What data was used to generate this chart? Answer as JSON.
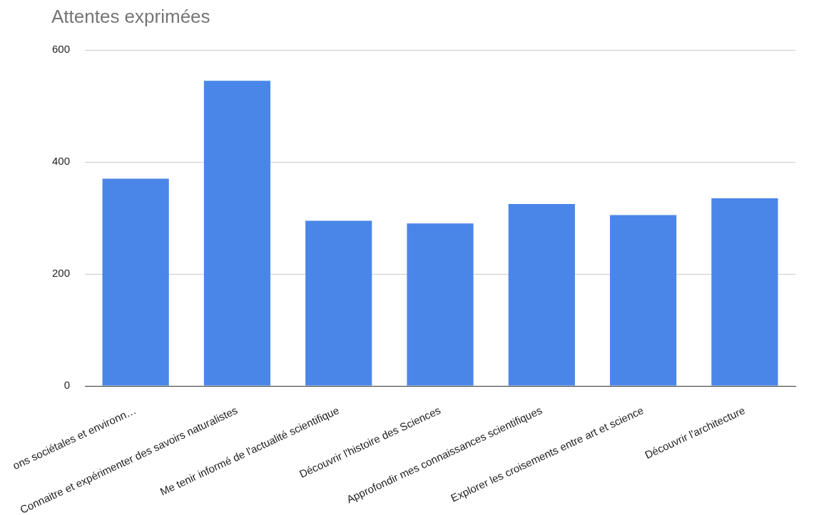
{
  "chart_data": {
    "type": "bar",
    "title": "Attentes exprimées",
    "categories": [
      "ons sociétales et environn…",
      "Connaitre et expérimenter des savoirs naturalistes",
      "Me tenir informé de l'actualité scientifique",
      "Découvrir l'histoire des Sciences",
      "Approfondir mes connaissances scientifiques",
      "Explorer les croisements entre art et science",
      "Découvrir l'architecture"
    ],
    "values": [
      370,
      545,
      295,
      290,
      325,
      305,
      335
    ],
    "color": "#4a86e8",
    "ylim": [
      0,
      600
    ],
    "yticks": [
      0,
      200,
      400,
      600
    ],
    "grid": "y"
  }
}
